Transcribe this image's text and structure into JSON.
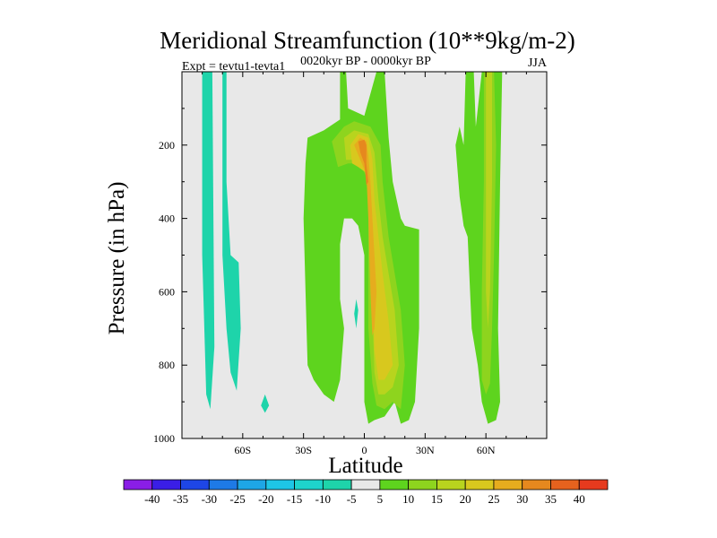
{
  "chart_data": {
    "type": "contour",
    "title": "Meridional Streamfunction (10**9kg/m-2)",
    "subtitle": "0020kyr BP - 0000kyr BP",
    "left_label": "Expt = tevtu1-tevta1",
    "right_label": "JJA",
    "xlabel": "Latitude",
    "ylabel": "Pressure (in hPa)",
    "xlim": [
      -90,
      90
    ],
    "ylim": [
      1000,
      0
    ],
    "x_ticks": [
      {
        "value": -60,
        "label": "60S"
      },
      {
        "value": -30,
        "label": "30S"
      },
      {
        "value": 0,
        "label": "0"
      },
      {
        "value": 30,
        "label": "30N"
      },
      {
        "value": 60,
        "label": "60N"
      }
    ],
    "y_ticks": [
      {
        "value": 200,
        "label": "200"
      },
      {
        "value": 400,
        "label": "400"
      },
      {
        "value": 600,
        "label": "600"
      },
      {
        "value": 800,
        "label": "800"
      },
      {
        "value": 1000,
        "label": "1000"
      }
    ],
    "colorbar": {
      "labels": [
        "-40",
        "-35",
        "-30",
        "-25",
        "-20",
        "-15",
        "-10",
        "-5",
        "5",
        "10",
        "15",
        "20",
        "25",
        "30",
        "35",
        "40"
      ],
      "colors": [
        "#8a1ee6",
        "#3a1ee6",
        "#1e46e6",
        "#1e7ae6",
        "#1ea6e6",
        "#1ec6e6",
        "#1ed4cc",
        "#1ed4aa",
        "#e8e8e8",
        "#5ed41e",
        "#8ed41e",
        "#b8d41e",
        "#d8c81e",
        "#e6ac1e",
        "#e6881e",
        "#e6621e",
        "#e63a1e"
      ]
    },
    "background_level": "#e8e8e8",
    "regions": [
      {
        "name": "sh-negative-band",
        "level": -5,
        "color": "#1ed4aa",
        "points": [
          [
            -80,
            0
          ],
          [
            -75,
            0
          ],
          [
            -74,
            750
          ],
          [
            -76,
            920
          ],
          [
            -78,
            880
          ],
          [
            -80,
            500
          ]
        ]
      },
      {
        "name": "sh-negative-band-2",
        "level": -5,
        "color": "#1ed4aa",
        "points": [
          [
            -70,
            0
          ],
          [
            -68,
            0
          ],
          [
            -68,
            300
          ],
          [
            -66,
            500
          ],
          [
            -62,
            520
          ],
          [
            -61,
            700
          ],
          [
            -63,
            870
          ],
          [
            -66,
            820
          ],
          [
            -68,
            700
          ],
          [
            -70,
            500
          ],
          [
            -70,
            200
          ]
        ]
      },
      {
        "name": "sh-negative-blob",
        "level": -5,
        "color": "#1ed4aa",
        "points": [
          [
            -49,
            880
          ],
          [
            -47,
            910
          ],
          [
            -49,
            930
          ],
          [
            -51,
            910
          ]
        ]
      },
      {
        "name": "eq-negative-blob",
        "level": -5,
        "color": "#1ed4aa",
        "points": [
          [
            -4,
            620
          ],
          [
            -3,
            650
          ],
          [
            -4,
            700
          ],
          [
            -5,
            660
          ]
        ]
      },
      {
        "name": "central-5",
        "level": 5,
        "color": "#5ed41e",
        "points": [
          [
            -28,
            180
          ],
          [
            -20,
            160
          ],
          [
            -12,
            130
          ],
          [
            -12,
            0
          ],
          [
            -9,
            0
          ],
          [
            -8,
            100
          ],
          [
            0,
            120
          ],
          [
            6,
            0
          ],
          [
            10,
            0
          ],
          [
            12,
            180
          ],
          [
            14,
            300
          ],
          [
            18,
            400
          ],
          [
            20,
            420
          ],
          [
            27,
            430
          ],
          [
            27,
            700
          ],
          [
            25,
            900
          ],
          [
            22,
            950
          ],
          [
            18,
            960
          ],
          [
            15,
            900
          ],
          [
            10,
            940
          ],
          [
            5,
            950
          ],
          [
            2,
            960
          ],
          [
            0,
            900
          ],
          [
            0,
            500
          ],
          [
            -3,
            420
          ],
          [
            -6,
            400
          ],
          [
            -10,
            400
          ],
          [
            -12,
            470
          ],
          [
            -12,
            620
          ],
          [
            -10,
            700
          ],
          [
            -12,
            840
          ],
          [
            -15,
            900
          ],
          [
            -20,
            880
          ],
          [
            -25,
            840
          ],
          [
            -28,
            800
          ],
          [
            -29,
            600
          ],
          [
            -30,
            400
          ],
          [
            -29,
            250
          ]
        ]
      },
      {
        "name": "central-10",
        "level": 10,
        "color": "#8ed41e",
        "points": [
          [
            -16,
            190
          ],
          [
            -10,
            150
          ],
          [
            -5,
            135
          ],
          [
            3,
            150
          ],
          [
            8,
            200
          ],
          [
            9,
            300
          ],
          [
            12,
            450
          ],
          [
            15,
            550
          ],
          [
            18,
            650
          ],
          [
            20,
            800
          ],
          [
            18,
            920
          ],
          [
            14,
            900
          ],
          [
            10,
            920
          ],
          [
            6,
            910
          ],
          [
            4,
            850
          ],
          [
            2,
            700
          ],
          [
            2,
            300
          ],
          [
            -2,
            250
          ],
          [
            -8,
            250
          ],
          [
            -13,
            260
          ]
        ]
      },
      {
        "name": "central-15",
        "level": 15,
        "color": "#b8d41e",
        "points": [
          [
            -10,
            180
          ],
          [
            -5,
            160
          ],
          [
            2,
            170
          ],
          [
            5,
            220
          ],
          [
            7,
            350
          ],
          [
            9,
            450
          ],
          [
            12,
            550
          ],
          [
            15,
            650
          ],
          [
            17,
            800
          ],
          [
            14,
            860
          ],
          [
            10,
            880
          ],
          [
            7,
            880
          ],
          [
            5,
            820
          ],
          [
            4,
            650
          ],
          [
            3,
            400
          ],
          [
            2,
            260
          ],
          [
            -4,
            240
          ],
          [
            -9,
            240
          ]
        ]
      },
      {
        "name": "central-20",
        "level": 20,
        "color": "#d8c81e",
        "points": [
          [
            -7,
            200
          ],
          [
            -3,
            170
          ],
          [
            2,
            180
          ],
          [
            4,
            240
          ],
          [
            5,
            350
          ],
          [
            7,
            450
          ],
          [
            9,
            550
          ],
          [
            12,
            680
          ],
          [
            14,
            800
          ],
          [
            10,
            840
          ],
          [
            7,
            840
          ],
          [
            5,
            760
          ],
          [
            4,
            600
          ],
          [
            3,
            400
          ],
          [
            2,
            280
          ],
          [
            -3,
            260
          ],
          [
            -6,
            250
          ]
        ]
      },
      {
        "name": "central-25",
        "level": 25,
        "color": "#e6ac1e",
        "points": [
          [
            -5,
            200
          ],
          [
            -2,
            180
          ],
          [
            1,
            190
          ],
          [
            2,
            230
          ],
          [
            3,
            300
          ],
          [
            4,
            400
          ],
          [
            5,
            500
          ],
          [
            6,
            600
          ],
          [
            5,
            700
          ],
          [
            4,
            720
          ],
          [
            3,
            600
          ],
          [
            2,
            400
          ],
          [
            1,
            280
          ],
          [
            -2,
            240
          ]
        ]
      },
      {
        "name": "central-30",
        "level": 30,
        "color": "#e6881e",
        "points": [
          [
            -3,
            190
          ],
          [
            0,
            185
          ],
          [
            1,
            200
          ],
          [
            1,
            250
          ],
          [
            2,
            300
          ],
          [
            1,
            310
          ],
          [
            0,
            250
          ],
          [
            -2,
            220
          ]
        ]
      },
      {
        "name": "nh-jet-band",
        "level": 5,
        "color": "#5ed41e",
        "points": [
          [
            50,
            0
          ],
          [
            54,
            0
          ],
          [
            55,
            150
          ],
          [
            58,
            0
          ],
          [
            68,
            0
          ],
          [
            67,
            300
          ],
          [
            66,
            700
          ],
          [
            67,
            900
          ],
          [
            65,
            950
          ],
          [
            61,
            960
          ],
          [
            58,
            900
          ],
          [
            56,
            800
          ],
          [
            53,
            700
          ],
          [
            51,
            450
          ],
          [
            49,
            420
          ],
          [
            47,
            340
          ],
          [
            45,
            200
          ],
          [
            47,
            150
          ],
          [
            49,
            200
          ]
        ]
      },
      {
        "name": "nh-jet-10",
        "level": 10,
        "color": "#8ed41e",
        "points": [
          [
            59,
            0
          ],
          [
            64,
            0
          ],
          [
            65,
            200
          ],
          [
            64,
            500
          ],
          [
            63,
            700
          ],
          [
            62,
            850
          ],
          [
            60,
            880
          ],
          [
            58,
            840
          ],
          [
            58,
            600
          ],
          [
            59,
            300
          ]
        ]
      },
      {
        "name": "nh-jet-15",
        "level": 15,
        "color": "#b8d41e",
        "points": [
          [
            60,
            0
          ],
          [
            63,
            0
          ],
          [
            63,
            300
          ],
          [
            62,
            600
          ],
          [
            61,
            700
          ],
          [
            60,
            600
          ],
          [
            60,
            300
          ]
        ]
      }
    ]
  }
}
